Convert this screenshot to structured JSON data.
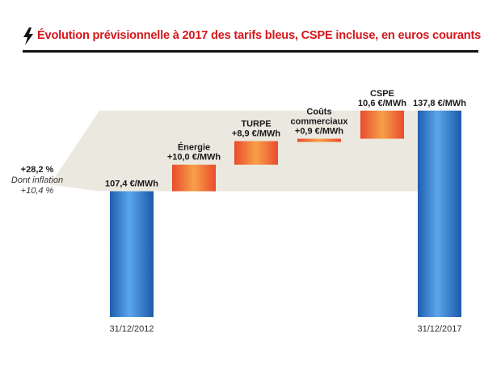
{
  "title": "Évolution prévisionnelle à 2017 des tarifs bleus, CSPE incluse, en euros courants",
  "colors": {
    "title": "#d8161b",
    "band": "#ebe8df",
    "blue": "#2a6fc4",
    "red": "#ea4b2b",
    "orange": "#f6a04a"
  },
  "summary": {
    "line1": "+28,2 %",
    "line2": "Dont inflation",
    "line3": "+10,4 %"
  },
  "chart_data": {
    "type": "bar",
    "subtype": "waterfall",
    "unit": "€/MWh",
    "ylim": [
      60,
      142
    ],
    "totals": [
      {
        "x": "31/12/2012",
        "value": 107.4,
        "label": "107,4 €/MWh"
      },
      {
        "x": "31/12/2017",
        "value": 137.8,
        "label": "137,8 €/MWh"
      }
    ],
    "steps": [
      {
        "name": "Énergie",
        "name2": "",
        "delta": 10.0,
        "label": "+10,0 €/MWh"
      },
      {
        "name": "TURPE",
        "name2": "",
        "delta": 8.9,
        "label": "+8,9 €/MWh"
      },
      {
        "name": "Coûts",
        "name2": "commerciaux",
        "delta": 0.9,
        "label": "+0,9 €/MWh"
      },
      {
        "name": "CSPE",
        "name2": "",
        "delta": 10.6,
        "label": "10,6 €/MWh"
      }
    ]
  }
}
